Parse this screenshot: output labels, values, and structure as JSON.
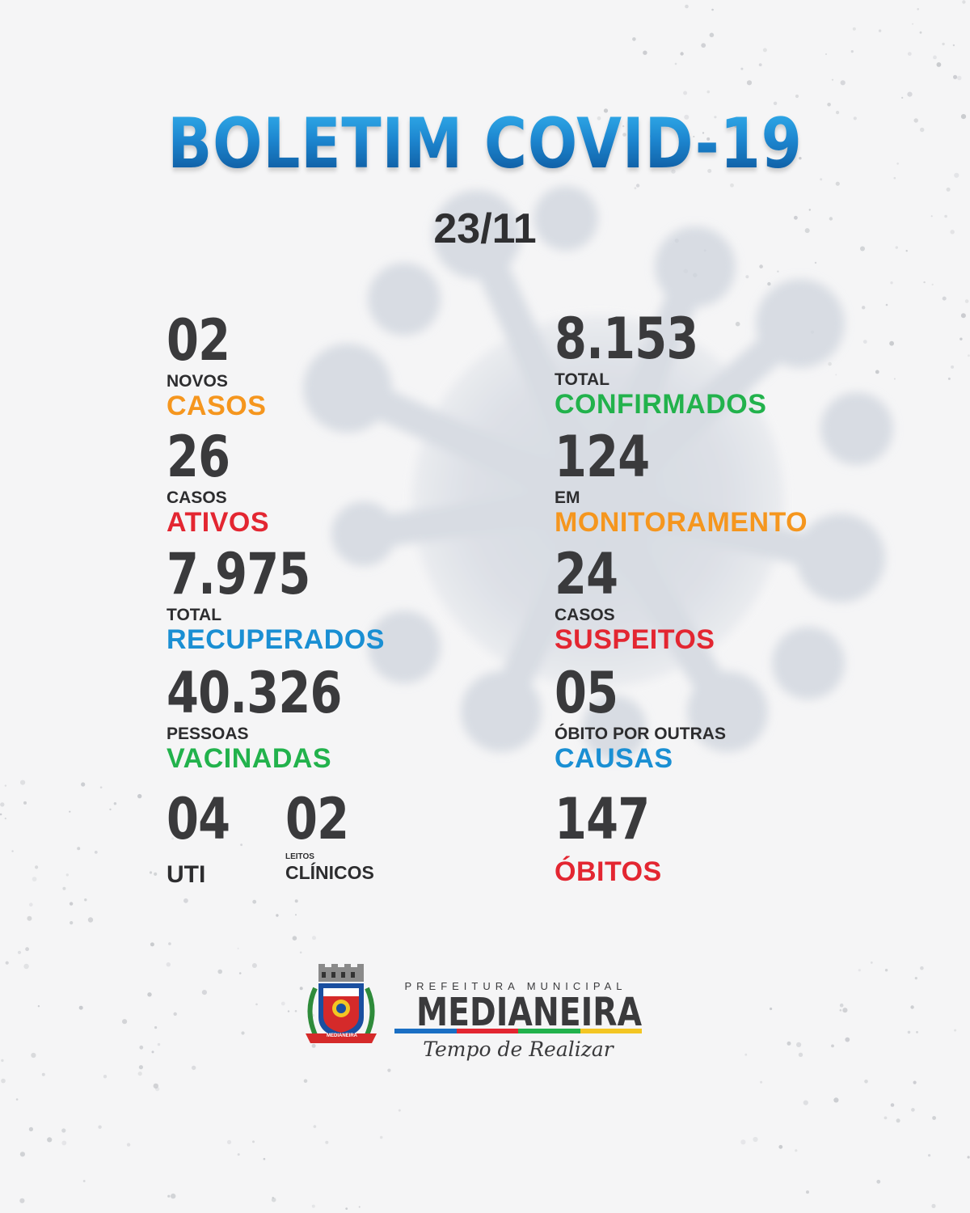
{
  "header": {
    "title": "BOLETIM COVID-19",
    "date": "23/11"
  },
  "colors": {
    "orange": "#f5961e",
    "green": "#22b24c",
    "red": "#e32631",
    "blue": "#1a8fd3",
    "dark": "#3a3a3c"
  },
  "left_stats": {
    "new_cases": {
      "value": "02",
      "label_small": "NOVOS",
      "label_big": "CASOS"
    },
    "active_cases": {
      "value": "26",
      "label_small": "CASOS",
      "label_big": "ATIVOS"
    },
    "recovered": {
      "value": "7.975",
      "label_small": "TOTAL",
      "label_big": "RECUPERADOS"
    },
    "vaccinated": {
      "value": "40.326",
      "label_small": "PESSOAS",
      "label_big": "VACINADAS"
    },
    "icu": {
      "value": "04",
      "label": "UTI"
    },
    "clinical_beds": {
      "value": "02",
      "label_small": "LEITOS",
      "label_big": "CLÍNICOS"
    }
  },
  "right_stats": {
    "confirmed": {
      "value": "8.153",
      "label_small": "TOTAL",
      "label_big": "CONFIRMADOS"
    },
    "monitoring": {
      "value": "124",
      "label_small": "EM",
      "label_big": "MONITORAMENTO"
    },
    "suspected": {
      "value": "24",
      "label_small": "CASOS",
      "label_big": "SUSPEITOS"
    },
    "other_deaths": {
      "value": "05",
      "label_small": "ÓBITO POR OUTRAS",
      "label_big": "CAUSAS"
    },
    "deaths": {
      "value": "147",
      "label_big": "ÓBITOS"
    }
  },
  "footer": {
    "prefecture_label": "PREFEITURA MUNICIPAL",
    "city_name": "MEDIANEIRA",
    "slogan": "Tempo de Realizar",
    "coat_of_arms_text": "MEDIANEIRA",
    "colorbar": [
      "#1a6fc4",
      "#e32631",
      "#22b24c",
      "#f3c623"
    ]
  }
}
